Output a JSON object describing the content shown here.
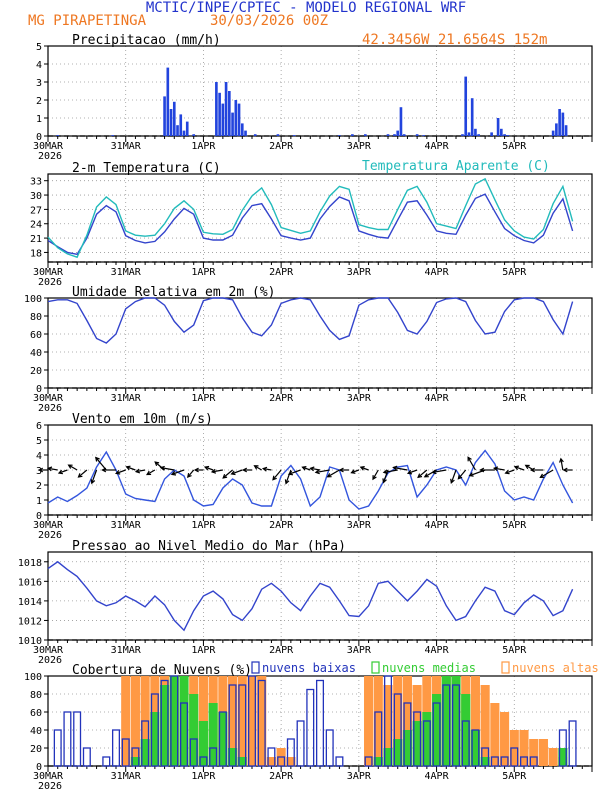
{
  "header": {
    "title": "MCTIC/INPE/CPTEC - MODELO REGIONAL WRF",
    "location": "MG PIRAPETINGA",
    "run": "30/03/2026 00Z",
    "coords": "42.3456W 21.6564S 152m",
    "title_color": "#2233cc",
    "sub_color": "#ee7722"
  },
  "chart_data": [
    {
      "type": "bar",
      "title": "Precipitacao (mm/h)",
      "x_ticks": [
        "30MAR",
        "31MAR",
        "1APR",
        "2APR",
        "3APR",
        "4APR",
        "5APR"
      ],
      "x_year": "2026",
      "ylim": [
        0,
        5
      ],
      "yticks": [
        0,
        1,
        2,
        3,
        4,
        5
      ],
      "x_hours": [
        3,
        20,
        36,
        37,
        38,
        39,
        40,
        41,
        42,
        43,
        45,
        52,
        53,
        54,
        55,
        56,
        57,
        58,
        59,
        60,
        61,
        64,
        71,
        76,
        90,
        94,
        98,
        105,
        107,
        108,
        109,
        110,
        114,
        116,
        128,
        129,
        130,
        131,
        132,
        133,
        137,
        139,
        140,
        141,
        142,
        156,
        157,
        158,
        159,
        160
      ],
      "values": [
        0.05,
        0.05,
        2.2,
        3.8,
        1.5,
        1.9,
        0.6,
        1.2,
        0.3,
        0.8,
        0.1,
        3.0,
        2.4,
        1.8,
        3.0,
        2.5,
        1.3,
        2.0,
        1.8,
        0.7,
        0.3,
        0.1,
        0.1,
        0.05,
        0.05,
        0.1,
        0.1,
        0.1,
        0.1,
        0.3,
        1.6,
        0.1,
        0.1,
        0.05,
        0.1,
        3.3,
        0.2,
        2.1,
        0.4,
        0.1,
        0.2,
        1.0,
        0.4,
        0.1,
        0.05,
        0.3,
        0.7,
        1.5,
        1.3,
        0.6
      ],
      "color": "#2244dd"
    },
    {
      "type": "line",
      "title": "2-m Temperatura (C)",
      "legend_label": "Temperatura Aparente (C)",
      "ylim": [
        16,
        34.4
      ],
      "yticks": [
        18,
        21,
        24,
        27,
        30,
        33
      ],
      "x_hours": [
        0,
        3,
        6,
        9,
        12,
        15,
        18,
        21,
        24,
        27,
        30,
        33,
        36,
        39,
        42,
        45,
        48,
        51,
        54,
        57,
        60,
        63,
        66,
        69,
        72,
        75,
        78,
        81,
        84,
        87,
        90,
        93,
        96,
        99,
        102,
        105,
        108,
        111,
        114,
        117,
        120,
        123,
        126,
        129,
        132,
        135,
        138,
        141,
        144,
        147,
        150,
        153,
        156,
        159,
        162
      ],
      "series": [
        {
          "name": "Temperatura",
          "color": "#3344cc",
          "values": [
            20.5,
            19.2,
            18.0,
            17.6,
            21.0,
            26.0,
            27.8,
            26.5,
            21.5,
            20.5,
            20.0,
            20.3,
            22.3,
            25.0,
            27.2,
            26.0,
            21.0,
            20.6,
            20.6,
            21.6,
            25.2,
            27.8,
            28.2,
            25.0,
            21.5,
            21.0,
            20.6,
            21.0,
            25.0,
            27.6,
            29.6,
            28.8,
            22.5,
            21.8,
            21.2,
            21.0,
            24.8,
            28.5,
            28.8,
            25.8,
            22.5,
            22.0,
            21.8,
            25.8,
            29.3,
            30.2,
            26.5,
            23.0,
            21.5,
            20.5,
            20.0,
            21.6,
            26.2,
            29.2,
            22.5
          ]
        },
        {
          "name": "Temperatura Aparente",
          "color": "#22bbbb",
          "values": [
            21.2,
            19.0,
            17.7,
            17.0,
            21.6,
            27.5,
            29.6,
            28.0,
            22.5,
            21.6,
            21.4,
            21.6,
            24.0,
            27.2,
            28.8,
            27.0,
            22.2,
            21.9,
            21.8,
            22.8,
            26.8,
            29.8,
            31.5,
            28.0,
            23.2,
            22.6,
            22.0,
            22.5,
            26.5,
            29.8,
            31.8,
            31.2,
            23.8,
            23.2,
            22.8,
            22.8,
            27.0,
            31.0,
            31.8,
            28.5,
            24.0,
            23.5,
            23.0,
            27.8,
            32.3,
            33.4,
            29.0,
            24.8,
            22.5,
            21.2,
            20.8,
            22.8,
            28.2,
            31.8,
            24.5
          ]
        }
      ]
    },
    {
      "type": "line",
      "title": "Umidade Relativa em 2m (%)",
      "ylim": [
        0,
        100
      ],
      "yticks": [
        0,
        20,
        40,
        60,
        80,
        100
      ],
      "x_hours": [
        0,
        3,
        6,
        9,
        12,
        15,
        18,
        21,
        24,
        27,
        30,
        33,
        36,
        39,
        42,
        45,
        48,
        51,
        54,
        57,
        60,
        63,
        66,
        69,
        72,
        75,
        78,
        81,
        84,
        87,
        90,
        93,
        96,
        99,
        102,
        105,
        108,
        111,
        114,
        117,
        120,
        123,
        126,
        129,
        132,
        135,
        138,
        141,
        144,
        147,
        150,
        153,
        156,
        159,
        162
      ],
      "series": [
        {
          "name": "Umidade Relativa",
          "color": "#3344cc",
          "values": [
            96,
            98,
            98,
            94,
            75,
            55,
            50,
            60,
            88,
            96,
            100,
            100,
            92,
            74,
            62,
            70,
            97,
            100,
            100,
            98,
            78,
            62,
            58,
            70,
            94,
            98,
            100,
            98,
            80,
            64,
            54,
            58,
            92,
            98,
            100,
            100,
            84,
            64,
            60,
            74,
            95,
            99,
            100,
            96,
            75,
            60,
            62,
            85,
            98,
            100,
            100,
            96,
            76,
            60,
            96
          ]
        }
      ]
    },
    {
      "type": "line",
      "title": "Vento em 10m (m/s)",
      "ylim": [
        0,
        6
      ],
      "yticks": [
        0,
        1,
        2,
        3,
        4,
        5,
        6
      ],
      "x_hours": [
        0,
        3,
        6,
        9,
        12,
        15,
        18,
        21,
        24,
        27,
        30,
        33,
        36,
        39,
        42,
        45,
        48,
        51,
        54,
        57,
        60,
        63,
        66,
        69,
        72,
        75,
        78,
        81,
        84,
        87,
        90,
        93,
        96,
        99,
        102,
        105,
        108,
        111,
        114,
        117,
        120,
        123,
        126,
        129,
        132,
        135,
        138,
        141,
        144,
        147,
        150,
        153,
        156,
        159,
        162
      ],
      "series": [
        {
          "name": "Vento",
          "color": "#3355dd",
          "values": [
            0.8,
            1.2,
            0.9,
            1.3,
            1.8,
            3.2,
            4.2,
            3.0,
            1.4,
            1.1,
            1.0,
            0.9,
            2.4,
            3.0,
            2.6,
            1.0,
            0.6,
            0.7,
            1.8,
            2.4,
            2.0,
            0.8,
            0.6,
            0.6,
            2.6,
            3.3,
            2.4,
            0.6,
            1.2,
            3.2,
            3.0,
            1.0,
            0.4,
            0.6,
            1.6,
            2.8,
            3.2,
            3.3,
            1.2,
            2.0,
            3.0,
            3.2,
            3.0,
            2.0,
            3.5,
            4.3,
            3.4,
            1.6,
            1.0,
            1.2,
            1.0,
            2.4,
            3.5,
            2.0,
            0.8
          ]
        }
      ],
      "arrow_baseline": 3,
      "arrow_angles_deg": [
        180,
        170,
        200,
        150,
        220,
        250,
        130,
        180,
        200,
        160,
        190,
        210,
        140,
        170,
        200,
        230,
        180,
        160,
        190,
        220,
        200,
        180,
        150,
        170,
        230,
        250,
        200,
        160,
        170,
        190,
        210,
        180,
        200,
        160,
        240,
        250,
        190,
        170,
        200,
        220,
        210,
        190,
        250,
        230,
        120,
        200,
        180,
        170,
        200,
        160,
        150,
        180,
        210,
        100,
        180
      ],
      "arrow_color": "#000000"
    },
    {
      "type": "line",
      "title": "Pressao ao Nivel Medio do Mar (hPa)",
      "ylim": [
        1010,
        1019
      ],
      "yticks": [
        1010,
        1012,
        1014,
        1016,
        1018
      ],
      "x_hours": [
        0,
        3,
        6,
        9,
        12,
        15,
        18,
        21,
        24,
        27,
        30,
        33,
        36,
        39,
        42,
        45,
        48,
        51,
        54,
        57,
        60,
        63,
        66,
        69,
        72,
        75,
        78,
        81,
        84,
        87,
        90,
        93,
        96,
        99,
        102,
        105,
        108,
        111,
        114,
        117,
        120,
        123,
        126,
        129,
        132,
        135,
        138,
        141,
        144,
        147,
        150,
        153,
        156,
        159,
        162
      ],
      "series": [
        {
          "name": "Pressao",
          "color": "#3344cc",
          "values": [
            1017.3,
            1018.0,
            1017.2,
            1016.5,
            1015.3,
            1014.0,
            1013.5,
            1013.8,
            1014.5,
            1014.0,
            1013.4,
            1014.5,
            1013.6,
            1012.0,
            1011.0,
            1013.0,
            1014.5,
            1015.0,
            1014.2,
            1012.6,
            1012.0,
            1013.2,
            1015.2,
            1015.8,
            1015.0,
            1013.8,
            1013.0,
            1014.5,
            1015.8,
            1015.4,
            1014.0,
            1012.5,
            1012.4,
            1013.5,
            1015.8,
            1016.0,
            1015.0,
            1014.0,
            1015.0,
            1016.2,
            1015.5,
            1013.5,
            1012.0,
            1012.4,
            1014.0,
            1015.4,
            1015.0,
            1013.0,
            1012.6,
            1013.8,
            1014.6,
            1014.0,
            1012.5,
            1013.0,
            1015.2
          ]
        }
      ]
    },
    {
      "type": "bar",
      "title": "Cobertura de Nuvens (%)",
      "ylim": [
        0,
        100
      ],
      "yticks": [
        0,
        20,
        40,
        60,
        80,
        100
      ],
      "legend": [
        "nuvens baixas",
        "nuvens medias",
        "nuvens altas"
      ],
      "colors": {
        "baixas": "#2233bb",
        "medias": "#33cc33",
        "altas": "#ff9944"
      },
      "x_hours": [
        0,
        3,
        6,
        9,
        12,
        15,
        18,
        21,
        24,
        27,
        30,
        33,
        36,
        39,
        42,
        45,
        48,
        51,
        54,
        57,
        60,
        63,
        66,
        69,
        72,
        75,
        78,
        81,
        84,
        87,
        90,
        93,
        96,
        99,
        102,
        105,
        108,
        111,
        114,
        117,
        120,
        123,
        126,
        129,
        132,
        135,
        138,
        141,
        144,
        147,
        150,
        153,
        156,
        159,
        162
      ],
      "series": [
        {
          "name": "nuvens altas",
          "color": "#ff9944",
          "values": [
            0,
            0,
            0,
            0,
            0,
            0,
            0,
            0,
            100,
            100,
            100,
            100,
            100,
            100,
            100,
            100,
            100,
            100,
            100,
            100,
            100,
            100,
            100,
            10,
            20,
            10,
            0,
            0,
            0,
            0,
            0,
            0,
            0,
            100,
            100,
            90,
            100,
            100,
            90,
            100,
            100,
            100,
            100,
            100,
            100,
            90,
            70,
            60,
            40,
            40,
            30,
            30,
            20,
            10,
            0
          ]
        },
        {
          "name": "nuvens medias",
          "color": "#33cc33",
          "values": [
            0,
            0,
            0,
            0,
            0,
            0,
            0,
            0,
            0,
            10,
            30,
            60,
            90,
            100,
            100,
            80,
            50,
            70,
            60,
            20,
            10,
            0,
            0,
            0,
            0,
            0,
            0,
            0,
            0,
            0,
            0,
            0,
            0,
            0,
            10,
            20,
            30,
            40,
            50,
            60,
            80,
            100,
            100,
            80,
            40,
            10,
            0,
            0,
            0,
            0,
            0,
            0,
            0,
            20,
            0
          ]
        },
        {
          "name": "nuvens baixas",
          "color": "#2233bb",
          "values": [
            0,
            40,
            60,
            60,
            20,
            0,
            10,
            40,
            30,
            20,
            50,
            80,
            95,
            100,
            70,
            30,
            10,
            20,
            60,
            90,
            90,
            100,
            95,
            20,
            10,
            30,
            50,
            85,
            95,
            40,
            10,
            0,
            0,
            10,
            60,
            100,
            80,
            70,
            60,
            50,
            70,
            90,
            90,
            50,
            40,
            20,
            10,
            10,
            20,
            10,
            10,
            0,
            0,
            40,
            50
          ]
        }
      ]
    }
  ]
}
